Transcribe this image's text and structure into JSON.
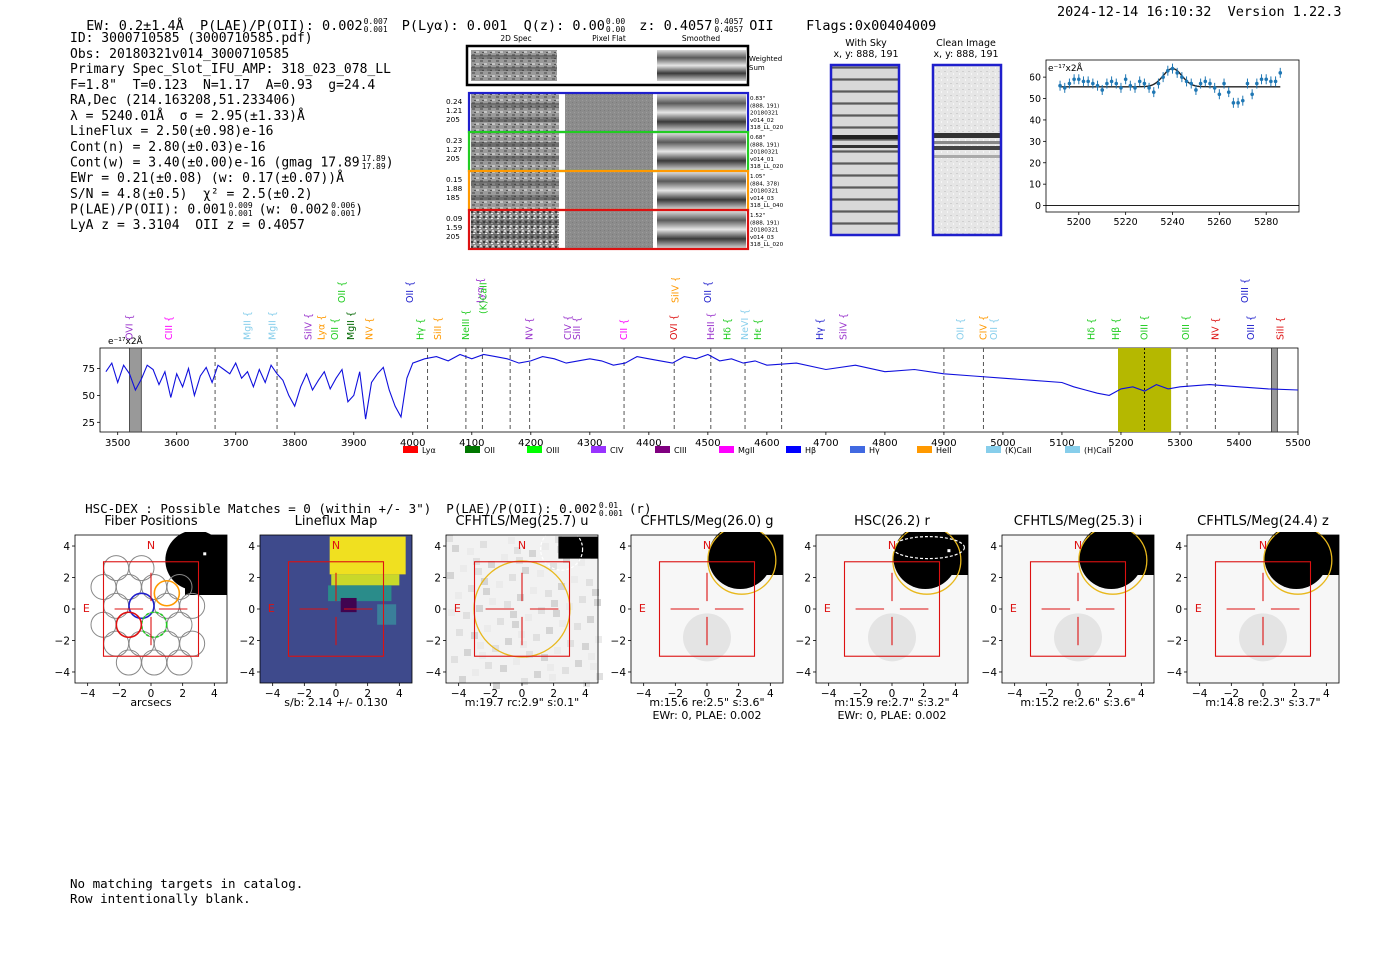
{
  "header": {
    "left": "EW: 0.2±1.4Å  P(LAE)/P(OII): 0.002",
    "plae_sup": "0.007",
    "plae_sub": "0.001",
    "plya": "P(Lyα): 0.001",
    "qz": "Q(z): 0.00",
    "qz_sup": "0.00",
    "qz_sub": "0.00",
    "z": "z: 0.4057",
    "z_sup": "0.4057",
    "z_sub": "0.4057",
    "z_line": "OII",
    "flags": "Flags:0x00404009",
    "right": "2024-12-14 16:10:32  Version 1.22.3"
  },
  "info": {
    "lines": [
      "ID: 3000710585 (3000710585.pdf)",
      "Obs: 20180321v014_3000710585",
      "Primary Spec_Slot_IFU_AMP: 318_023_078_LL",
      "F=1.8\"  T=0.123  N=1.17  A=0.93  g=24.4",
      "RA,Dec (214.163208,51.233406)",
      "λ = 5240.01Å  σ = 2.95(±1.33)Å",
      "LineFlux = 2.50(±0.98)e-16",
      "Cont(n) = 2.80(±0.03)e-16",
      "Cont(w) = 3.40(±0.00)e-16 (gmag 17.89",
      "EWr = 0.21(±0.08) (w: 0.17(±0.07))Å",
      "S/N = 4.8(±0.5)  χ² = 2.5(±0.2)",
      "P(LAE)/P(OII): 0.001",
      "LyA z = 3.3104  OII z = 0.4057"
    ],
    "gmag_sup": "17.89",
    "gmag_sub": "17.89",
    "plae_sup": "0.009",
    "plae_sub": "0.001",
    "plae_w": "(w: 0.002",
    "plae_w_sup": "0.006",
    "plae_w_sub": "0.001"
  },
  "fiber_panel": {
    "col_headers": [
      "2D Spec",
      "Pixel Flat",
      "Smoothed"
    ],
    "weighted_label": "Weighted\nSum",
    "rows": [
      {
        "left": [
          "0.24",
          "1.21",
          "205"
        ],
        "right": [
          "0.83\"",
          "(888, 191)",
          "20180321",
          "v014_02",
          "318_LL_020"
        ],
        "color": "#1f1fcc"
      },
      {
        "left": [
          "0.23",
          "1.27",
          "205"
        ],
        "right": [
          "0.68\"",
          "(888, 191)",
          "20180321",
          "v014_01",
          "318_LL_020"
        ],
        "color": "#22cc22"
      },
      {
        "left": [
          "0.15",
          "1.88",
          "185"
        ],
        "right": [
          "1.05\"",
          "(884, 378)",
          "20180321",
          "v014_03",
          "318_LL_040"
        ],
        "color": "#ff9900"
      },
      {
        "left": [
          "0.09",
          "1.59",
          "205"
        ],
        "right": [
          "1.52\"",
          "(888, 191)",
          "20180321",
          "v014_03",
          "318_LL_020"
        ],
        "color": "#dd1111"
      }
    ]
  },
  "sky_panels": [
    {
      "title": "With Sky",
      "sub": "x, y: 888, 191"
    },
    {
      "title": "Clean Image",
      "sub": "x, y: 888, 191"
    }
  ],
  "zoom_chart": {
    "unit_label": "e⁻¹⁷x2Å",
    "xticks": [
      "5200",
      "5220",
      "5240",
      "5260",
      "5280"
    ],
    "yticks": [
      "0",
      "10",
      "20",
      "30",
      "40",
      "50",
      "60"
    ]
  },
  "chart_data": [
    {
      "type": "scatter",
      "title": "",
      "xlabel": "",
      "ylabel": "e-17 x2Å",
      "xlim": [
        5186,
        5294
      ],
      "ylim": [
        -3,
        68
      ],
      "series": [
        {
          "name": "data",
          "x": [
            5192,
            5194,
            5196,
            5198,
            5200,
            5202,
            5204,
            5206,
            5208,
            5210,
            5212,
            5214,
            5216,
            5218,
            5220,
            5222,
            5224,
            5226,
            5228,
            5230,
            5232,
            5234,
            5236,
            5238,
            5240,
            5242,
            5244,
            5246,
            5248,
            5250,
            5252,
            5254,
            5256,
            5258,
            5260,
            5262,
            5264,
            5266,
            5268,
            5270,
            5272,
            5274,
            5276,
            5278,
            5280,
            5282,
            5284,
            5286
          ],
          "y": [
            56,
            55,
            57,
            59,
            59,
            58,
            58,
            57,
            56,
            54,
            57,
            58,
            57,
            55,
            59,
            56,
            55,
            58,
            57,
            55,
            53,
            57,
            60,
            63,
            64,
            62,
            60,
            58,
            57,
            54,
            57,
            58,
            57,
            55,
            52,
            57,
            53,
            48,
            48,
            49,
            57,
            52,
            57,
            59,
            59,
            58,
            58,
            62
          ]
        },
        {
          "name": "fit",
          "model": "gaussian",
          "center": 5240,
          "sigma": 4.0,
          "amplitude": 8.5,
          "baseline": 55.5
        }
      ]
    },
    {
      "type": "line",
      "title": "",
      "xlabel": "",
      "ylabel": "e-17 x2Å",
      "xlim": [
        3470,
        5500
      ],
      "ylim": [
        16,
        94
      ],
      "xticks": [
        3500,
        3600,
        3700,
        3800,
        3900,
        4000,
        4100,
        4200,
        4300,
        4400,
        4500,
        4600,
        4700,
        4800,
        4900,
        5000,
        5100,
        5200,
        5300,
        5400,
        5500
      ],
      "yticks": [
        25,
        50,
        75
      ],
      "series": [
        {
          "name": "spectrum",
          "x": [
            3480,
            3490,
            3500,
            3510,
            3520,
            3530,
            3540,
            3550,
            3560,
            3570,
            3580,
            3590,
            3600,
            3610,
            3620,
            3630,
            3640,
            3650,
            3660,
            3670,
            3680,
            3690,
            3700,
            3710,
            3720,
            3730,
            3740,
            3750,
            3760,
            3770,
            3780,
            3790,
            3800,
            3810,
            3820,
            3830,
            3840,
            3850,
            3860,
            3870,
            3880,
            3890,
            3900,
            3910,
            3920,
            3930,
            3940,
            3950,
            3960,
            3970,
            3980,
            3990,
            4000,
            4020,
            4040,
            4060,
            4080,
            4100,
            4120,
            4140,
            4160,
            4180,
            4200,
            4220,
            4240,
            4260,
            4280,
            4300,
            4320,
            4340,
            4360,
            4380,
            4400,
            4420,
            4440,
            4460,
            4480,
            4500,
            4520,
            4540,
            4560,
            4580,
            4600,
            4650,
            4700,
            4750,
            4800,
            4850,
            4900,
            4950,
            5000,
            5050,
            5100,
            5120,
            5140,
            5160,
            5180,
            5200,
            5220,
            5240,
            5260,
            5280,
            5300,
            5350,
            5400,
            5450,
            5500
          ],
          "y": [
            72,
            80,
            62,
            78,
            70,
            55,
            65,
            78,
            74,
            60,
            72,
            48,
            70,
            58,
            75,
            50,
            68,
            76,
            62,
            78,
            74,
            70,
            80,
            66,
            72,
            58,
            74,
            62,
            78,
            70,
            64,
            50,
            40,
            58,
            70,
            55,
            64,
            72,
            56,
            66,
            74,
            44,
            50,
            72,
            28,
            62,
            70,
            76,
            55,
            40,
            30,
            66,
            80,
            84,
            86,
            82,
            88,
            84,
            88,
            86,
            84,
            80,
            82,
            86,
            84,
            80,
            82,
            84,
            82,
            78,
            80,
            86,
            84,
            82,
            80,
            86,
            84,
            88,
            82,
            84,
            80,
            82,
            78,
            80,
            74,
            78,
            72,
            74,
            70,
            68,
            66,
            64,
            62,
            58,
            55,
            52,
            50,
            56,
            58,
            54,
            60,
            56,
            58,
            60,
            58,
            56,
            55
          ]
        }
      ],
      "highlight_band": [
        5195,
        5285
      ],
      "masked_bands": [
        [
          3520,
          3540
        ],
        [
          5455,
          5465
        ]
      ],
      "marker_wavelengths": [
        3665,
        3770,
        4025,
        4090,
        4118,
        4165,
        4198,
        4358,
        4443,
        4505,
        4563,
        4625,
        4900,
        4967,
        5312,
        5360
      ]
    }
  ],
  "spectrum": {
    "unit_label": "e⁻¹⁷x2Å",
    "xticks": [
      "3500",
      "3600",
      "3700",
      "3800",
      "3900",
      "4000",
      "4100",
      "4200",
      "4300",
      "4400",
      "4500",
      "4600",
      "4700",
      "4800",
      "4900",
      "5000",
      "5100",
      "5200",
      "5300",
      "5400",
      "5500"
    ],
    "yticks": [
      "25",
      "50",
      "75"
    ],
    "line_labels": [
      {
        "text": "OVI",
        "wl": 3520,
        "row": 3,
        "color": "#9933cc"
      },
      {
        "text": "CIII",
        "wl": 3587,
        "row": 3,
        "color": "#ff00ff"
      },
      {
        "text": "MgII",
        "wl": 3720,
        "row": 3,
        "color": "#87ceeb"
      },
      {
        "text": "MgII",
        "wl": 3762,
        "row": 3,
        "color": "#87ceeb"
      },
      {
        "text": "SiIV",
        "wl": 3823,
        "row": 3,
        "color": "#9933cc"
      },
      {
        "text": "Lyα",
        "wl": 3845,
        "row": 3,
        "color": "#ff9900"
      },
      {
        "text": "OII",
        "wl": 3868,
        "row": 3,
        "color": "#22cc22"
      },
      {
        "text": "MgII",
        "wl": 3895,
        "row": 3,
        "color": "#006600"
      },
      {
        "text": "NV",
        "wl": 3927,
        "row": 3,
        "color": "#ff9900"
      },
      {
        "text": "OII",
        "wl": 3880,
        "row": 1,
        "color": "#22cc22"
      },
      {
        "text": "OII",
        "wl": 3995,
        "row": 1,
        "color": "#1f1fcc"
      },
      {
        "text": "Hγ",
        "wl": 4013,
        "row": 3,
        "color": "#22cc22"
      },
      {
        "text": "SiII",
        "wl": 4043,
        "row": 3,
        "color": "#ff9900"
      },
      {
        "text": "NeIII",
        "wl": 4090,
        "row": 3,
        "color": "#22cc22"
      },
      {
        "text": "Lyα",
        "wl": 4115,
        "row": 1,
        "color": "#9933cc"
      },
      {
        "text": "(K)CaII",
        "wl": 4120,
        "row": 2,
        "color": "#22cc22"
      },
      {
        "text": "NV",
        "wl": 4198,
        "row": 3,
        "color": "#9933cc"
      },
      {
        "text": "CIV",
        "wl": 4263,
        "row": 3,
        "color": "#9933cc"
      },
      {
        "text": "SiII",
        "wl": 4278,
        "row": 3,
        "color": "#9933cc"
      },
      {
        "text": "CII",
        "wl": 4358,
        "row": 3,
        "color": "#ff00ff"
      },
      {
        "text": "SiIV",
        "wl": 4445,
        "row": 1,
        "color": "#ff9900"
      },
      {
        "text": "OVI",
        "wl": 4443,
        "row": 3,
        "color": "#dd1111"
      },
      {
        "text": "OII",
        "wl": 4500,
        "row": 1,
        "color": "#1f1fcc"
      },
      {
        "text": "HeII",
        "wl": 4505,
        "row": 3,
        "color": "#9933cc"
      },
      {
        "text": "Hδ",
        "wl": 4533,
        "row": 3,
        "color": "#22cc22"
      },
      {
        "text": "NeVI",
        "wl": 4563,
        "row": 3,
        "color": "#87ceeb"
      },
      {
        "text": "Hε",
        "wl": 4585,
        "row": 3,
        "color": "#22cc22"
      },
      {
        "text": "Hγ",
        "wl": 4690,
        "row": 3,
        "color": "#1f1fcc"
      },
      {
        "text": "SiIV",
        "wl": 4730,
        "row": 3,
        "color": "#9933cc"
      },
      {
        "text": "OII",
        "wl": 4928,
        "row": 3,
        "color": "#87ceeb"
      },
      {
        "text": "CIV",
        "wl": 4967,
        "row": 3,
        "color": "#ff9900"
      },
      {
        "text": "OII",
        "wl": 4985,
        "row": 3,
        "color": "#87ceeb"
      },
      {
        "text": "Hδ",
        "wl": 5150,
        "row": 3,
        "color": "#22cc22"
      },
      {
        "text": "Hβ",
        "wl": 5192,
        "row": 3,
        "color": "#22cc22"
      },
      {
        "text": "OIII",
        "wl": 5240,
        "row": 3,
        "color": "#22cc22"
      },
      {
        "text": "OIII",
        "wl": 5310,
        "row": 3,
        "color": "#22cc22"
      },
      {
        "text": "NV",
        "wl": 5360,
        "row": 3,
        "color": "#dd1111"
      },
      {
        "text": "OIII",
        "wl": 5410,
        "row": 1,
        "color": "#1f1fcc"
      },
      {
        "text": "OIII",
        "wl": 5420,
        "row": 3,
        "color": "#1f1fcc"
      },
      {
        "text": "SiII",
        "wl": 5470,
        "row": 3,
        "color": "#dd1111"
      }
    ],
    "legend": [
      {
        "label": "Lyα",
        "color": "#ff0000"
      },
      {
        "label": "OII",
        "color": "#007700"
      },
      {
        "label": "OIII",
        "color": "#00ff00"
      },
      {
        "label": "CIV",
        "color": "#9933ff"
      },
      {
        "label": "CIII",
        "color": "#800080"
      },
      {
        "label": "MgII",
        "color": "#ff00ff"
      },
      {
        "label": "Hβ",
        "color": "#0000ff"
      },
      {
        "label": "Hγ",
        "color": "#4169e1"
      },
      {
        "label": "HeII",
        "color": "#ff9900"
      },
      {
        "label": "(K)CaII",
        "color": "#87ceeb"
      },
      {
        "label": "(H)CaII",
        "color": "#87ceeb"
      }
    ]
  },
  "hsc": {
    "summary": "HSC-DEX : Possible Matches = 0 (within +/- 3\")  P(LAE)/P(OII): 0.002",
    "sup": "0.01",
    "sub": "0.001",
    "band": "(r)"
  },
  "cutouts": [
    {
      "title": "Fiber Positions",
      "caption1": "arcsecs",
      "caption2": "",
      "type": "fiber"
    },
    {
      "title": "Lineflux Map",
      "caption1": "s/b: 2.14 +/- 0.130",
      "caption2": "",
      "type": "lineflux"
    },
    {
      "title": "CFHTLS/Meg(25.7) u",
      "caption1": "m:19.7 rc:2.9\"  s:0.1\"",
      "caption2": "",
      "type": "u"
    },
    {
      "title": "CFHTLS/Meg(26.0) g",
      "caption1": "m:15.6  re:2.5\"  s:3.6\"",
      "caption2": "EWr: 0, PLAE: 0.002",
      "type": "img"
    },
    {
      "title": "HSC(26.2) r",
      "caption1": "m:15.9  re:2.7\"  s:3.2\"",
      "caption2": "EWr: 0, PLAE: 0.002",
      "type": "imgdash"
    },
    {
      "title": "CFHTLS/Meg(25.3) i",
      "caption1": "m:15.2  re:2.6\"  s:3.6\"",
      "caption2": "",
      "type": "img"
    },
    {
      "title": "CFHTLS/Meg(24.4) z",
      "caption1": "m:14.8  re:2.3\"  s:3.7\"",
      "caption2": "",
      "type": "img"
    }
  ],
  "cutout_axis": {
    "ticks": [
      "−4",
      "−2",
      "0",
      "2",
      "4"
    ],
    "north": "N",
    "east": "E"
  },
  "footer": {
    "line1": "No matching targets in catalog.",
    "line2": "Row intentionally blank."
  }
}
